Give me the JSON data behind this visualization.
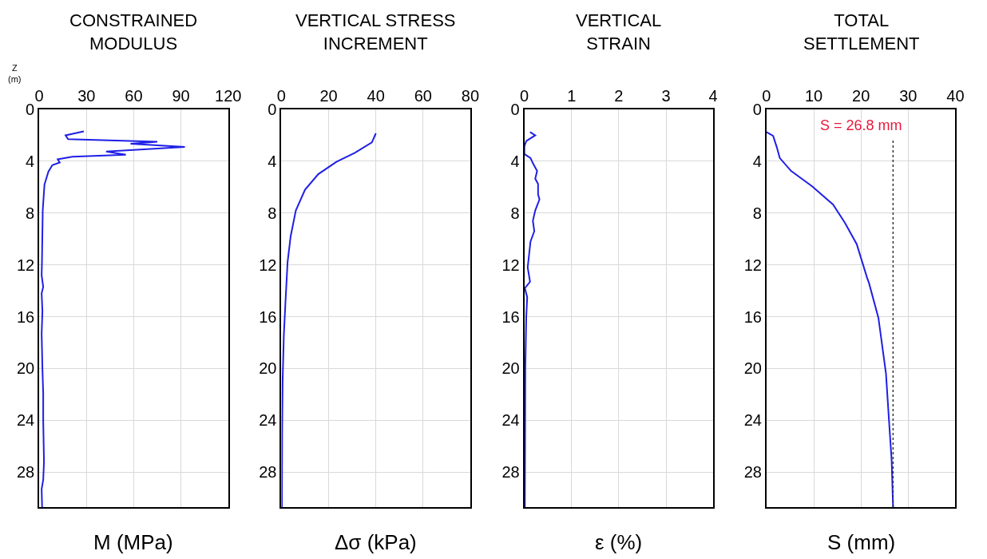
{
  "chart_data": [
    {
      "type": "line",
      "title": "CONSTRAINED\nMODULUS",
      "xlabel": "M (MPa)",
      "ylabel": "Z\n(m)",
      "grid": true,
      "series": [
        {
          "color": "#1f1fe6",
          "x": [
            28.3,
            16.7,
            18.3,
            75,
            58,
            92.5,
            42.5,
            55,
            21,
            11.7,
            13,
            8.3,
            5.8,
            3.3,
            2.2,
            1.7,
            1.5,
            2.5,
            1.5,
            2,
            1.5,
            2,
            2.5,
            2.5,
            3,
            2.5,
            1.5,
            1.8
          ],
          "values": [
            1.7,
            2.0,
            2.3,
            2.5,
            2.65,
            2.9,
            3.25,
            3.5,
            3.65,
            3.85,
            4.1,
            4.3,
            4.8,
            5.8,
            7.8,
            11.8,
            12.8,
            13.7,
            14.2,
            15.6,
            17.3,
            20,
            21.9,
            24,
            27.2,
            28.6,
            29.3,
            30.7
          ]
        }
      ],
      "xlim": [
        0,
        120
      ],
      "xticks": [
        0,
        30,
        60,
        90,
        120
      ],
      "ylim": [
        30.7,
        0
      ],
      "yticks": [
        0,
        4,
        8,
        12,
        16,
        20,
        24,
        28
      ]
    },
    {
      "type": "line",
      "title": "VERTICAL STRESS\nINCREMENT",
      "xlabel": "Δσ (kPa)",
      "grid": true,
      "series": [
        {
          "color": "#1f1fe6",
          "x": [
            40,
            38.3,
            31.1,
            23.3,
            15.6,
            10,
            6.1,
            3.9,
            2.6,
            1.7,
            1.0,
            0.5,
            0.3,
            0.2
          ],
          "values": [
            1.85,
            2.55,
            3.35,
            4.05,
            5.0,
            6.2,
            7.8,
            9.8,
            11.8,
            14.9,
            17.5,
            21,
            25,
            30.7
          ]
        }
      ],
      "xlim": [
        0,
        80
      ],
      "xticks": [
        0,
        20,
        40,
        60,
        80
      ],
      "ylim": [
        30.7,
        0
      ],
      "yticks": [
        0,
        4,
        8,
        12,
        16,
        20,
        24,
        28
      ]
    },
    {
      "type": "line",
      "title": "VERTICAL\nSTRAIN",
      "xlabel": "ε (%)",
      "grid": true,
      "series": [
        {
          "color": "#1f1fe6",
          "x": [
            0.12,
            0.23,
            0.04,
            0.0,
            0.0,
            0.13,
            0.18,
            0.27,
            0.23,
            0.29,
            0.29,
            0.32,
            0.23,
            0.18,
            0.21,
            0.13,
            0.07,
            0.12,
            0.01,
            0.06,
            0.04,
            0.02,
            0.01
          ],
          "values": [
            1.75,
            2.0,
            2.45,
            2.85,
            3.45,
            3.75,
            4.15,
            4.75,
            5.35,
            5.75,
            6.55,
            6.95,
            7.8,
            8.6,
            9.4,
            10.2,
            12.2,
            13.3,
            13.8,
            14.5,
            16,
            20,
            30.7
          ]
        }
      ],
      "xlim": [
        0,
        4
      ],
      "xticks": [
        0,
        1,
        2,
        3,
        4
      ],
      "ylim": [
        30.7,
        0
      ],
      "yticks": [
        0,
        4,
        8,
        12,
        16,
        20,
        24,
        28
      ]
    },
    {
      "type": "line",
      "title": "TOTAL\nSETTLEMENT",
      "xlabel": "S (mm)",
      "grid": true,
      "series": [
        {
          "color": "#1f1fe6",
          "x": [
            0,
            1.4,
            2.2,
            2.8,
            5.2,
            9.7,
            14.1,
            16.6,
            19.1,
            21.3,
            21.7,
            23.7,
            25.3,
            25.9,
            26.5,
            26.8
          ],
          "values": [
            1.75,
            2.05,
            2.95,
            3.75,
            4.75,
            5.95,
            7.35,
            8.75,
            10.4,
            13.0,
            13.4,
            16.1,
            20.4,
            23.8,
            27.1,
            30.7
          ]
        }
      ],
      "ref_lines": [
        {
          "axis": "x",
          "value": 26.8,
          "label": "S = 26.8 mm",
          "color": "#333333",
          "line_style": "dotted"
        }
      ],
      "xlim": [
        0,
        40
      ],
      "xticks": [
        0,
        10,
        20,
        30,
        40
      ],
      "ylim": [
        30.7,
        0
      ],
      "yticks": [
        0,
        4,
        8,
        12,
        16,
        20,
        24,
        28
      ]
    }
  ]
}
